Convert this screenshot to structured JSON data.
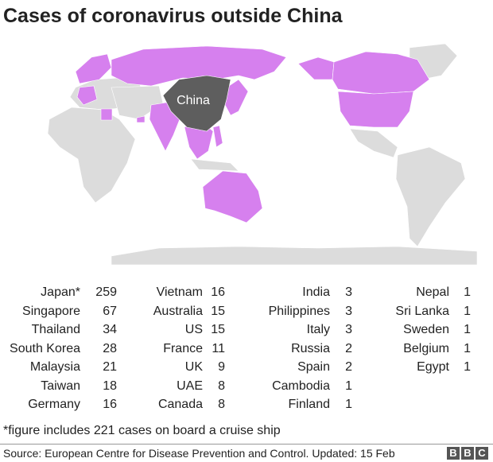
{
  "title": "Cases of coronavirus outside China",
  "map": {
    "label": "China"
  },
  "table": {
    "columns": [
      [
        [
          "Japan*",
          259
        ],
        [
          "Singapore",
          67
        ],
        [
          "Thailand",
          34
        ],
        [
          "South Korea",
          28
        ],
        [
          "Malaysia",
          21
        ],
        [
          "Taiwan",
          18
        ],
        [
          "Germany",
          16
        ]
      ],
      [
        [
          "Vietnam",
          16
        ],
        [
          "Australia",
          15
        ],
        [
          "US",
          15
        ],
        [
          "France",
          11
        ],
        [
          "UK",
          9
        ],
        [
          "UAE",
          8
        ],
        [
          "Canada",
          8
        ]
      ],
      [
        [
          "India",
          3
        ],
        [
          "Philippines",
          3
        ],
        [
          "Italy",
          3
        ],
        [
          "Russia",
          2
        ],
        [
          "Spain",
          2
        ],
        [
          "Cambodia",
          1
        ],
        [
          "Finland",
          1
        ]
      ],
      [
        [
          "Nepal",
          1
        ],
        [
          "Sri Lanka",
          1
        ],
        [
          "Sweden",
          1
        ],
        [
          "Belgium",
          1
        ],
        [
          "Egypt",
          1
        ]
      ]
    ]
  },
  "footnote": "*figure includes 221 cases on board a cruise ship",
  "source": "Source: European Centre for Disease Prevention and Control. Updated: 15 Feb",
  "logo": [
    "B",
    "B",
    "C"
  ]
}
